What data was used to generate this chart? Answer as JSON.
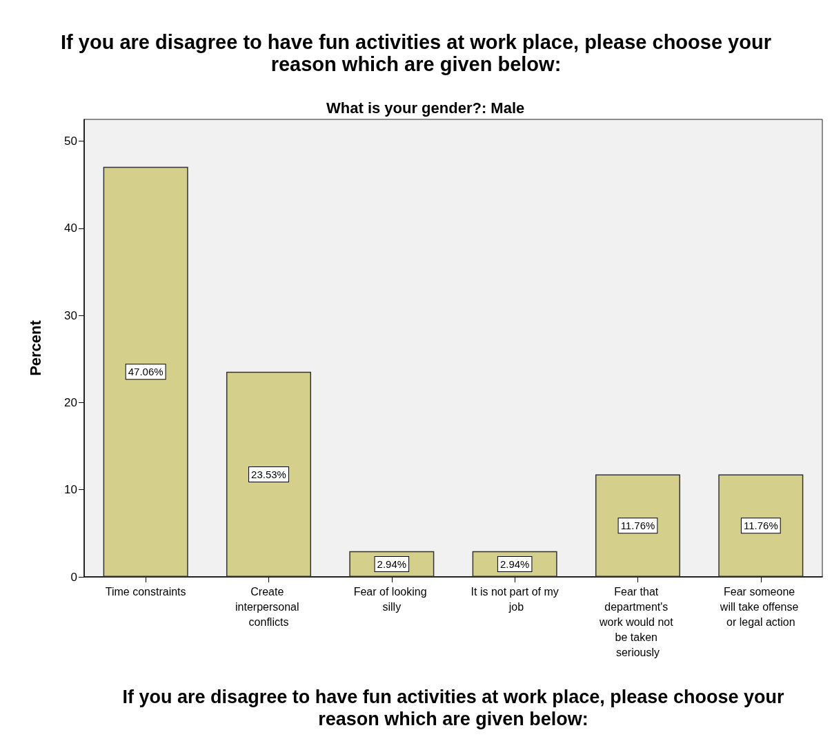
{
  "chart_data": {
    "type": "bar",
    "title": "If you are disagree to have fun activities at work place, please choose your reason which are given below:",
    "subtitle": "What is your gender?: Male",
    "xlabel": "If you are disagree to have fun activities at work place, please choose your reason which are given below:",
    "ylabel": "Percent",
    "categories": [
      "Time constraints",
      "Create interpersonal conflicts",
      "Fear of looking silly",
      "It is not part of my job",
      "Fear that department's work would not be taken seriously",
      "Fear someone will take offense or legal action"
    ],
    "values": [
      47.06,
      23.53,
      2.94,
      2.94,
      11.76,
      11.76
    ],
    "value_labels": [
      "47.06%",
      "23.53%",
      "2.94%",
      "2.94%",
      "11.76%",
      "11.76%"
    ],
    "color": "#d5cf8c",
    "ylim": [
      0,
      52.5
    ],
    "yticks": [
      0,
      10,
      20,
      30,
      40,
      50
    ]
  }
}
